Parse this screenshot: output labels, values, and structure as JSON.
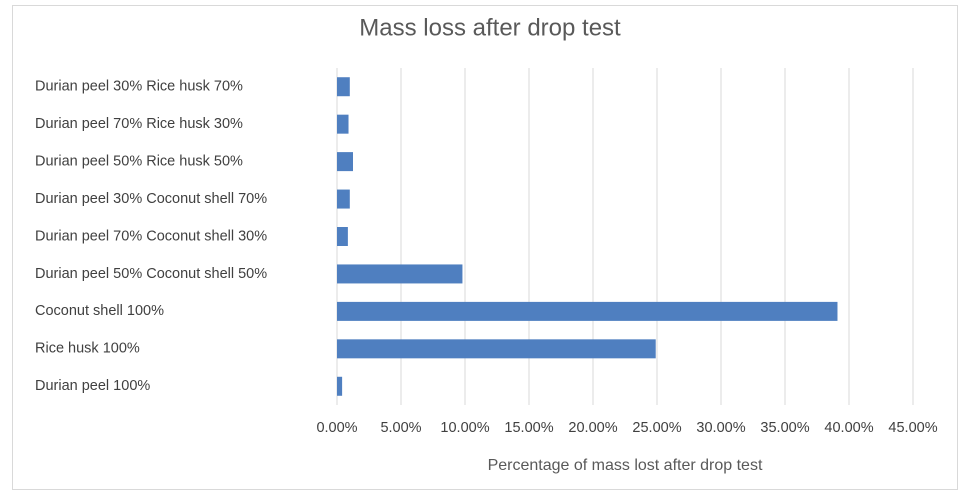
{
  "chart_data": {
    "type": "bar",
    "orientation": "horizontal",
    "title": "Mass loss after drop test",
    "x_label": "Percentage of mass lost after drop test",
    "categories": [
      "Durian peel 100%",
      "Rice husk 100%",
      "Coconut shell 100%",
      "Durian peel 50% Coconut shell 50%",
      "Durian peel 70% Coconut shell 30%",
      "Durian peel 30% Coconut shell 70%",
      "Durian peel 50% Rice husk 50%",
      "Durian peel 70% Rice husk 30%",
      "Durian peel 30% Rice husk 70%"
    ],
    "values": [
      0.4,
      24.9,
      39.1,
      9.8,
      0.85,
      1.0,
      1.25,
      0.9,
      1.0
    ],
    "color": "#4f7fc0",
    "xlim": [
      0,
      45
    ],
    "xticks": [
      {
        "value": 0,
        "label": "0.00%"
      },
      {
        "value": 5,
        "label": "5.00%"
      },
      {
        "value": 10,
        "label": "10.00%"
      },
      {
        "value": 15,
        "label": "15.00%"
      },
      {
        "value": 20,
        "label": "20.00%"
      },
      {
        "value": 25,
        "label": "25.00%"
      },
      {
        "value": 30,
        "label": "30.00%"
      },
      {
        "value": 35,
        "label": "35.00%"
      },
      {
        "value": 40,
        "label": "40.00%"
      },
      {
        "value": 45,
        "label": "45.00%"
      }
    ],
    "grid": true
  }
}
